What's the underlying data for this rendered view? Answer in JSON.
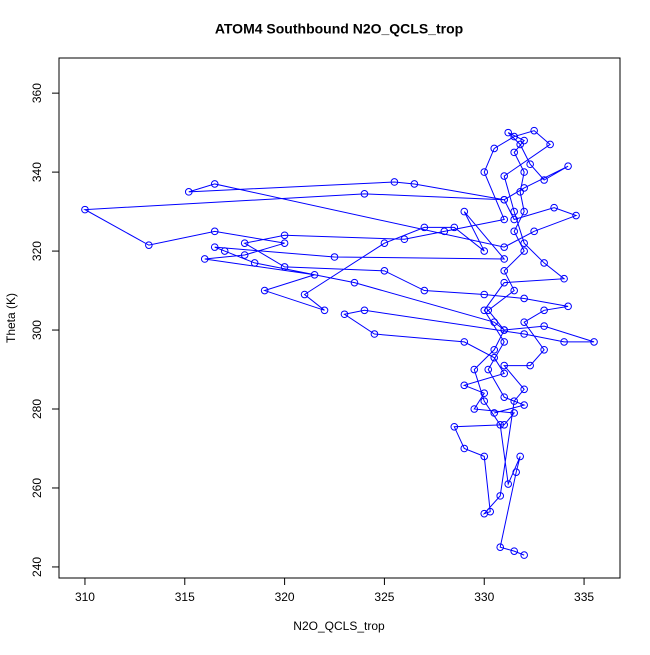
{
  "chart_data": {
    "type": "scatter",
    "title": "ATOM4 Southbound N2O_QCLS_trop",
    "x_label": "N2O_QCLS_trop",
    "y_label": "Theta (K)",
    "connect": true,
    "xlim": [
      308.7,
      336.8
    ],
    "ylim": [
      237.2,
      368.9
    ],
    "xticks": [
      310,
      315,
      320,
      325,
      330,
      335
    ],
    "yticks": [
      240,
      260,
      280,
      300,
      320,
      340,
      360
    ],
    "x": [
      332,
      331.5,
      330.8,
      331.6,
      331.8,
      331.2,
      330.8,
      330,
      329.5,
      330.5,
      331,
      330.2,
      331.5,
      331,
      332,
      331.5,
      332,
      331.8,
      332,
      331.5,
      332,
      331.2,
      331.8,
      332.3,
      333,
      334.2,
      332,
      331,
      331.5,
      333.5,
      334.6,
      332.5,
      331,
      316.5,
      315.2,
      325.5,
      326.5,
      331,
      324,
      310,
      313.2,
      316.5,
      320,
      318,
      316,
      321.5,
      319,
      322,
      321,
      325,
      327,
      328.5,
      330,
      329,
      331,
      322.5,
      316.5,
      317,
      318.5,
      323.5,
      330.5,
      331,
      333,
      335.5,
      334,
      332,
      324,
      323,
      324.5,
      329,
      330.5,
      331,
      329,
      330,
      329.5,
      331.5,
      331,
      328.5,
      329,
      330,
      330.3,
      330,
      330.8,
      331.5,
      332,
      331,
      332.3,
      333,
      332,
      333,
      334.2,
      332,
      330,
      327,
      325,
      320,
      318,
      320,
      326,
      328,
      331,
      330,
      330.5,
      331.5,
      332.5,
      333.3,
      331,
      331.5,
      332,
      333,
      334,
      331,
      330,
      331,
      330.2,
      331,
      332,
      330.5
    ],
    "series": [
      {
        "color": "#0000ff",
        "values": [
          243,
          244,
          245,
          264,
          268,
          261,
          276,
          282,
          290,
          295,
          300,
          305,
          310,
          315,
          320,
          325,
          330,
          335,
          340,
          345,
          348,
          350,
          347,
          342,
          338,
          341.5,
          336,
          333,
          328,
          331,
          329,
          325,
          321,
          337,
          335,
          337.5,
          337,
          333,
          334.5,
          330.5,
          321.5,
          325,
          322,
          319,
          318,
          314,
          310,
          305,
          309,
          322,
          326,
          326,
          320,
          330,
          318,
          318.5,
          321,
          320,
          317,
          312,
          302,
          300,
          301,
          297,
          297,
          299,
          305,
          304,
          299,
          297,
          293,
          289,
          286,
          284,
          280,
          279,
          276,
          275.5,
          270,
          268,
          254,
          253.5,
          258,
          282,
          285,
          291,
          291,
          295,
          302,
          305,
          306,
          308,
          309,
          310,
          315,
          316,
          322,
          324,
          323,
          325,
          328,
          340,
          346,
          349,
          350.5,
          347,
          339,
          330,
          322,
          317,
          313,
          312,
          305,
          297,
          290,
          283,
          281,
          279
        ]
      }
    ]
  }
}
